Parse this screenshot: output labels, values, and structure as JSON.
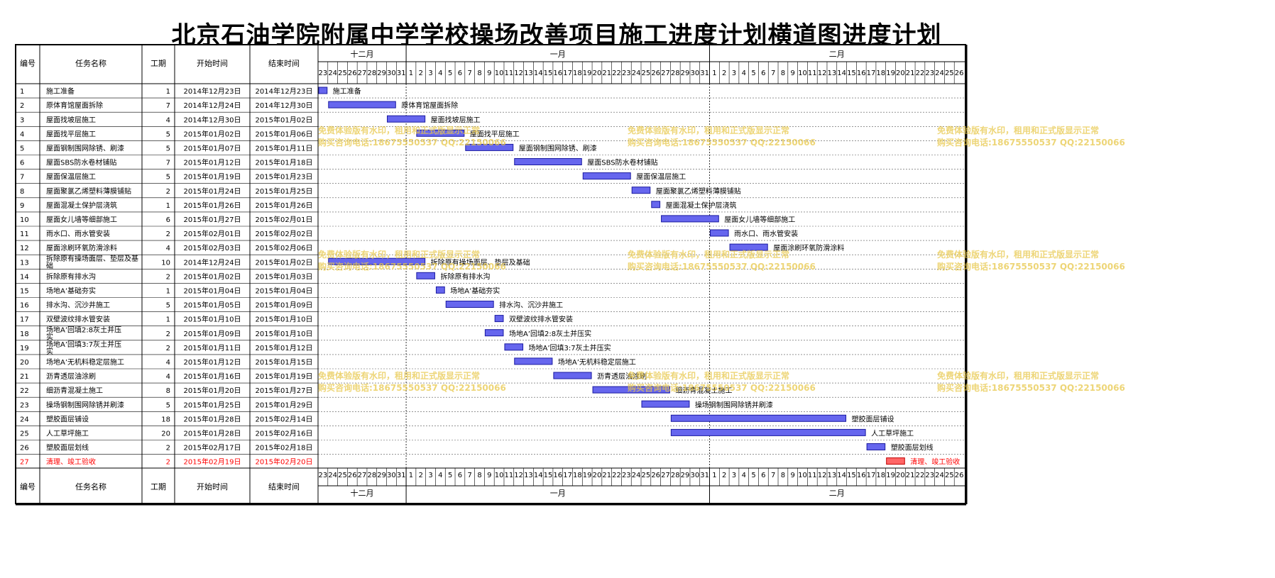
{
  "title": "北京石油学院附属中学学校操场改善项目施工进度计划横道图进度计划",
  "chart_data": {
    "type": "gantt",
    "columns": [
      "编号",
      "任务名称",
      "工期",
      "开始时间",
      "结束时间"
    ],
    "timeline_start": "2014-12-23",
    "timeline_end": "2015-02-26",
    "months": [
      {
        "label": "十二月",
        "start": "2014-12-23",
        "end": "2014-12-31"
      },
      {
        "label": "一月",
        "start": "2015-01-01",
        "end": "2015-01-31"
      },
      {
        "label": "二月",
        "start": "2015-02-01",
        "end": "2015-02-26"
      }
    ],
    "days": [
      23,
      24,
      25,
      26,
      27,
      28,
      29,
      30,
      31,
      1,
      2,
      3,
      4,
      5,
      6,
      7,
      8,
      9,
      10,
      11,
      12,
      13,
      14,
      15,
      16,
      17,
      18,
      19,
      20,
      21,
      22,
      23,
      24,
      25,
      26,
      27,
      28,
      29,
      30,
      31,
      1,
      2,
      3,
      4,
      5,
      6,
      7,
      8,
      9,
      10,
      11,
      12,
      13,
      14,
      15,
      16,
      17,
      18,
      19,
      20,
      21,
      22,
      23,
      24,
      25,
      26
    ],
    "tasks": [
      {
        "id": "1",
        "name": "施工准备",
        "duration": "1",
        "start_text": "2014年12月23日",
        "end_text": "2014年12月23日",
        "start": "2014-12-23",
        "end": "2014-12-23",
        "bar_label": "施工准备"
      },
      {
        "id": "2",
        "name": "原体育馆屋面拆除",
        "duration": "7",
        "start_text": "2014年12月24日",
        "end_text": "2014年12月30日",
        "start": "2014-12-24",
        "end": "2014-12-30",
        "bar_label": "原体育馆屋面拆除"
      },
      {
        "id": "3",
        "name": "屋面找坡层施工",
        "duration": "4",
        "start_text": "2014年12月30日",
        "end_text": "2015年01月02日",
        "start": "2014-12-30",
        "end": "2015-01-02",
        "bar_label": "屋面找坡层施工"
      },
      {
        "id": "4",
        "name": "屋面找平层施工",
        "duration": "5",
        "start_text": "2015年01月02日",
        "end_text": "2015年01月06日",
        "start": "2015-01-02",
        "end": "2015-01-06",
        "bar_label": "屋面找平层施工"
      },
      {
        "id": "5",
        "name": "屋面钢制围网除锈、刷漆",
        "duration": "5",
        "start_text": "2015年01月07日",
        "end_text": "2015年01月11日",
        "start": "2015-01-07",
        "end": "2015-01-11",
        "bar_label": "屋面钢制围网除锈、刷漆"
      },
      {
        "id": "6",
        "name": "屋面SBS防水卷材铺贴",
        "duration": "7",
        "start_text": "2015年01月12日",
        "end_text": "2015年01月18日",
        "start": "2015-01-12",
        "end": "2015-01-18",
        "bar_label": "屋面SBS防水卷材铺贴"
      },
      {
        "id": "7",
        "name": "屋面保温层施工",
        "duration": "5",
        "start_text": "2015年01月19日",
        "end_text": "2015年01月23日",
        "start": "2015-01-19",
        "end": "2015-01-23",
        "bar_label": "屋面保温层施工"
      },
      {
        "id": "8",
        "name": "屋面聚氯乙烯塑料薄膜铺贴",
        "duration": "2",
        "start_text": "2015年01月24日",
        "end_text": "2015年01月25日",
        "start": "2015-01-24",
        "end": "2015-01-25",
        "bar_label": "屋面聚氯乙烯塑料薄膜铺贴"
      },
      {
        "id": "9",
        "name": "屋面混凝土保护层浇筑",
        "duration": "1",
        "start_text": "2015年01月26日",
        "end_text": "2015年01月26日",
        "start": "2015-01-26",
        "end": "2015-01-26",
        "bar_label": "屋面混凝土保护层浇筑"
      },
      {
        "id": "10",
        "name": "屋面女儿墙等细部施工",
        "duration": "6",
        "start_text": "2015年01月27日",
        "end_text": "2015年02月01日",
        "start": "2015-01-27",
        "end": "2015-02-01",
        "bar_label": "屋面女儿墙等细部施工"
      },
      {
        "id": "11",
        "name": "雨水口、雨水管安装",
        "duration": "2",
        "start_text": "2015年02月01日",
        "end_text": "2015年02月02日",
        "start": "2015-02-01",
        "end": "2015-02-02",
        "bar_label": "雨水口、雨水管安装"
      },
      {
        "id": "12",
        "name": "屋面涂刷环氧防滑涂料",
        "duration": "4",
        "start_text": "2015年02月03日",
        "end_text": "2015年02月06日",
        "start": "2015-02-03",
        "end": "2015-02-06",
        "bar_label": "屋面涂刷环氧防滑涂料"
      },
      {
        "id": "13",
        "name": "拆除原有操场面层、垫层及基础",
        "duration": "10",
        "start_text": "2014年12月24日",
        "end_text": "2015年01月02日",
        "start": "2014-12-24",
        "end": "2015-01-02",
        "bar_label": "拆除原有操场面层、垫层及基础"
      },
      {
        "id": "14",
        "name": "拆除原有排水沟",
        "duration": "2",
        "start_text": "2015年01月02日",
        "end_text": "2015年01月03日",
        "start": "2015-01-02",
        "end": "2015-01-03",
        "bar_label": "拆除原有排水沟"
      },
      {
        "id": "15",
        "name": "场地A’基础夯实",
        "duration": "1",
        "start_text": "2015年01月04日",
        "end_text": "2015年01月04日",
        "start": "2015-01-04",
        "end": "2015-01-04",
        "bar_label": "场地A’基础夯实"
      },
      {
        "id": "16",
        "name": "排水沟、沉沙井施工",
        "duration": "5",
        "start_text": "2015年01月05日",
        "end_text": "2015年01月09日",
        "start": "2015-01-05",
        "end": "2015-01-09",
        "bar_label": "排水沟、沉沙井施工"
      },
      {
        "id": "17",
        "name": "双壁波纹排水管安装",
        "duration": "1",
        "start_text": "2015年01月10日",
        "end_text": "2015年01月10日",
        "start": "2015-01-10",
        "end": "2015-01-10",
        "bar_label": "双壁波纹排水管安装"
      },
      {
        "id": "18",
        "name": "场地A’回填2:8灰土并压实",
        "duration": "2",
        "start_text": "2015年01月09日",
        "end_text": "2015年01月10日",
        "start": "2015-01-09",
        "end": "2015-01-10",
        "bar_label": "场地A’回填2:8灰土并压实"
      },
      {
        "id": "19",
        "name": "场地A’回填3:7灰土并压实",
        "duration": "2",
        "start_text": "2015年01月11日",
        "end_text": "2015年01月12日",
        "start": "2015-01-11",
        "end": "2015-01-12",
        "bar_label": "场地A’回填3:7灰土并压实"
      },
      {
        "id": "20",
        "name": "场地A’无机料稳定层施工",
        "duration": "4",
        "start_text": "2015年01月12日",
        "end_text": "2015年01月15日",
        "start": "2015-01-12",
        "end": "2015-01-15",
        "bar_label": "场地A’无机料稳定层施工"
      },
      {
        "id": "21",
        "name": "沥青透层油涂刷",
        "duration": "4",
        "start_text": "2015年01月16日",
        "end_text": "2015年01月19日",
        "start": "2015-01-16",
        "end": "2015-01-19",
        "bar_label": "沥青透层油涂刷"
      },
      {
        "id": "22",
        "name": "细沥青混凝土施工",
        "duration": "8",
        "start_text": "2015年01月20日",
        "end_text": "2015年01月27日",
        "start": "2015-01-20",
        "end": "2015-01-27",
        "bar_label": "细沥青混凝土施工"
      },
      {
        "id": "23",
        "name": "操场钢制围网除锈并刷漆",
        "duration": "5",
        "start_text": "2015年01月25日",
        "end_text": "2015年01月29日",
        "start": "2015-01-25",
        "end": "2015-01-29",
        "bar_label": "操场钢制围网除锈并刷漆"
      },
      {
        "id": "24",
        "name": "塑胶面层铺设",
        "duration": "18",
        "start_text": "2015年01月28日",
        "end_text": "2015年02月14日",
        "start": "2015-01-28",
        "end": "2015-02-14",
        "bar_label": "塑胶面层铺设"
      },
      {
        "id": "25",
        "name": "人工草坪施工",
        "duration": "20",
        "start_text": "2015年01月28日",
        "end_text": "2015年02月16日",
        "start": "2015-01-28",
        "end": "2015-02-16",
        "bar_label": "人工草坪施工"
      },
      {
        "id": "26",
        "name": "塑胶面层划线",
        "duration": "2",
        "start_text": "2015年02月17日",
        "end_text": "2015年02月18日",
        "start": "2015-02-17",
        "end": "2015-02-18",
        "bar_label": "塑胶面层划线"
      },
      {
        "id": "27",
        "name": "清理、竣工验收",
        "duration": "2",
        "start_text": "2015年02月19日",
        "end_text": "2015年02月20日",
        "start": "2015-02-19",
        "end": "2015-02-20",
        "bar_label": "清理、竣工验收",
        "highlight": true
      }
    ],
    "colors": {
      "bar": "#6666ee",
      "bar_border": "#1a1aa0",
      "highlight_bar": "#ff6666",
      "highlight_text": "#ff0000",
      "watermark": "#e8c84a"
    }
  },
  "watermark": {
    "line1": "免费体验版有水印，租用和正式版显示正常",
    "line2": "购买咨询电话:18675550537 QQ:22150066"
  }
}
